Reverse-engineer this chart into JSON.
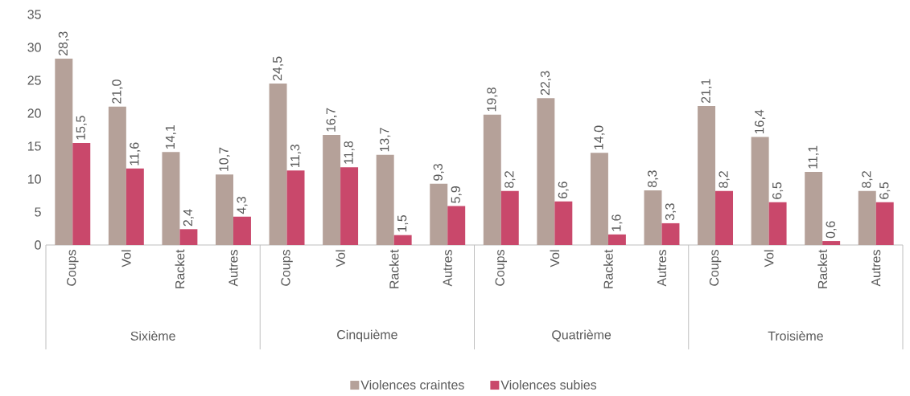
{
  "chart_data": {
    "type": "bar",
    "categories": [
      "Coups",
      "Vol",
      "Racket",
      "Autres",
      "Coups",
      "Vol",
      "Racket",
      "Autres",
      "Coups",
      "Vol",
      "Racket",
      "Autres",
      "Coups",
      "Vol",
      "Racket",
      "Autres"
    ],
    "series": [
      {
        "name": "Violences craintes",
        "color": "#b5a199",
        "values": [
          28.3,
          21.0,
          14.1,
          10.7,
          24.5,
          16.7,
          13.7,
          9.3,
          19.8,
          22.3,
          14.0,
          8.3,
          21.1,
          16.4,
          11.1,
          8.2
        ],
        "value_labels": [
          "28,3",
          "21,0",
          "14,1",
          "10,7",
          "24,5",
          "16,7",
          "13,7",
          "9,3",
          "19,8",
          "22,3",
          "14,0",
          "8,3",
          "21,1",
          "16,4",
          "11,1",
          "8,2"
        ]
      },
      {
        "name": "Violences subies",
        "color": "#c9486b",
        "values": [
          15.5,
          11.6,
          2.4,
          4.3,
          11.3,
          11.8,
          1.5,
          5.9,
          8.2,
          6.6,
          1.6,
          3.3,
          8.2,
          6.5,
          0.6,
          6.5
        ],
        "value_labels": [
          "15,5",
          "11,6",
          "2,4",
          "4,3",
          "11,3",
          "11,8",
          "1,5",
          "5,9",
          "8,2",
          "6,6",
          "1,6",
          "3,3",
          "8,2",
          "6,5",
          "0,6",
          "6,5"
        ]
      }
    ],
    "annotations": [
      "Sixième",
      "Cinquième",
      "Quatrième",
      "Troisième"
    ],
    "ylim": [
      0,
      35
    ],
    "yticks": [
      0,
      5,
      10,
      15,
      20,
      25,
      30,
      35
    ],
    "legend": "bottom"
  }
}
